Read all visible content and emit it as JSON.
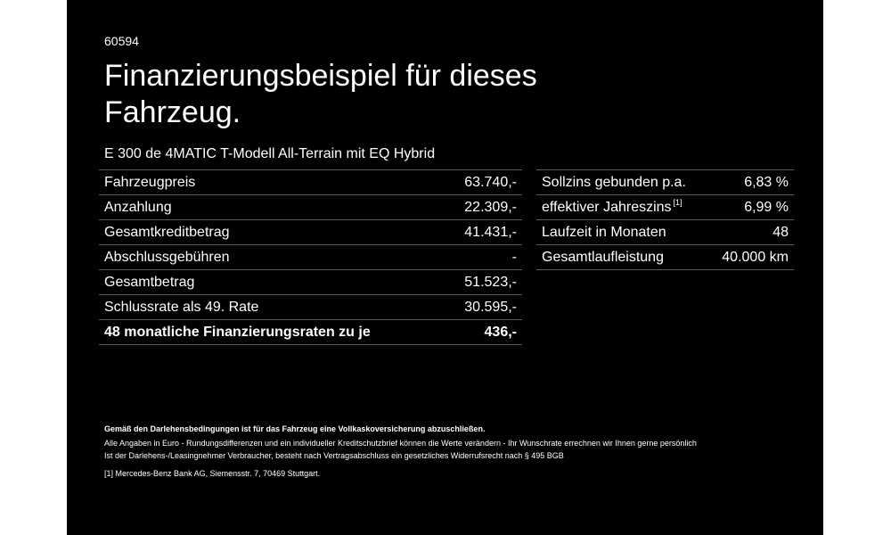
{
  "code": "60594",
  "title_line1": "Finanzierungsbeispiel für dieses",
  "title_line2": "Fahrzeug.",
  "model": "E 300 de 4MATIC T-Modell All-Terrain mit EQ Hybrid",
  "left_table": [
    {
      "label": "Fahrzeugpreis",
      "value": "63.740,-"
    },
    {
      "label": "Anzahlung",
      "value": "22.309,-"
    },
    {
      "label": "Gesamtkreditbetrag",
      "value": "41.431,-"
    },
    {
      "label": "Abschlussgebühren",
      "value": "-"
    },
    {
      "label": "Gesamtbetrag",
      "value": "51.523,-"
    },
    {
      "label": "Schlussrate als 49. Rate",
      "value": "30.595,-"
    },
    {
      "label": "48 monatliche Finanzierungsraten zu je",
      "value": "436,-"
    }
  ],
  "right_table": [
    {
      "label": "Sollzins gebunden p.a.",
      "value": "6,83 %"
    },
    {
      "label": "effektiver Jahreszins",
      "sup": "[1]",
      "value": "6,99 %"
    },
    {
      "label": "Laufzeit in Monaten",
      "value": "48"
    },
    {
      "label": "Gesamtlaufleistung",
      "value": "40.000 km"
    }
  ],
  "footer": {
    "bold": "Gemäß den Darlehensbedingungen ist für das Fahrzeug eine Vollkaskoversicherung abzuschließen.",
    "line1": "Alle Angaben in Euro - Rundungsdifferenzen und ein individueller Kreditschutzbrief können die Werte verändern - Ihr Wunschrate errechnen wir Ihnen gerne persönlich",
    "line2": "Ist der Darlehens-/Leasingnehmer Verbraucher, besteht nach Vertragsabschluss ein gesetzliches Widerrufsrecht nach § 495 BGB",
    "note_marker": "[1]",
    "note": "Mercedes-Benz Bank AG, Siemensstr. 7, 70469 Stuttgart."
  }
}
